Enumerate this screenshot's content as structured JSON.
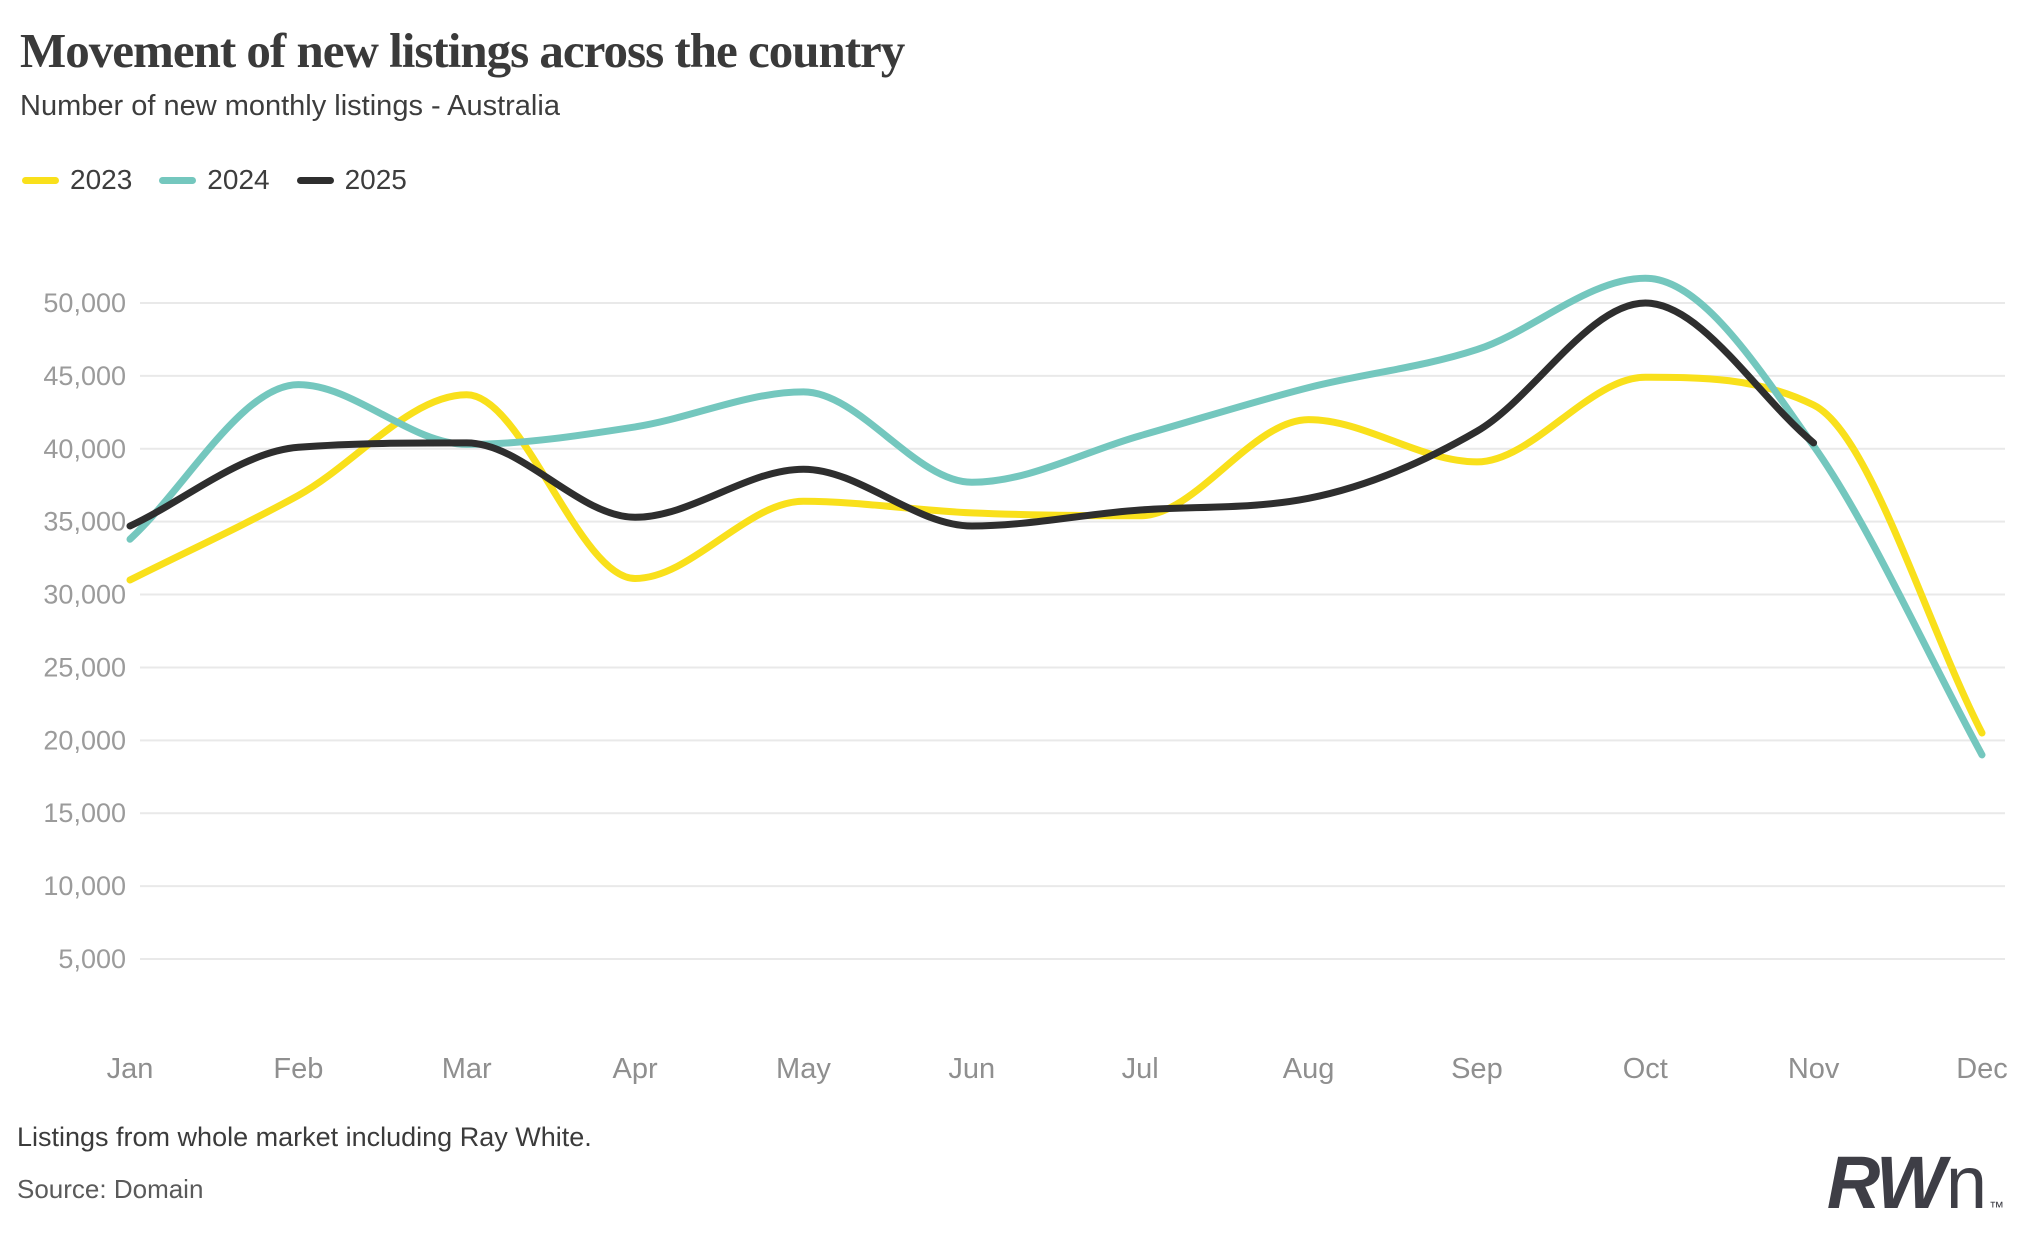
{
  "header": {
    "title": "Movement of new listings across the country",
    "subtitle": "Number of new monthly listings - Australia"
  },
  "chart_data": {
    "type": "line",
    "title": "Movement of new listings across the country",
    "subtitle": "Number of new monthly listings - Australia",
    "categories": [
      "Jan",
      "Feb",
      "Mar",
      "Apr",
      "May",
      "Jun",
      "Jul",
      "Aug",
      "Sep",
      "Oct",
      "Nov",
      "Dec"
    ],
    "series": [
      {
        "name": "2023",
        "color": "#F9E01B",
        "values": [
          31000,
          36800,
          43700,
          31100,
          36400,
          35600,
          35400,
          42000,
          39100,
          44900,
          43000,
          20500
        ]
      },
      {
        "name": "2024",
        "color": "#74C7BE",
        "values": [
          33800,
          44400,
          40300,
          41500,
          43900,
          37700,
          40900,
          44200,
          46800,
          51700,
          40200,
          19000
        ]
      },
      {
        "name": "2025",
        "color": "#2E2E2E",
        "values": [
          34700,
          40100,
          40400,
          35300,
          38600,
          34700,
          35800,
          36600,
          41200,
          50000,
          40400
        ]
      }
    ],
    "y_ticks": [
      50000,
      45000,
      40000,
      35000,
      30000,
      25000,
      20000,
      15000,
      10000,
      5000
    ],
    "ylim": [
      5000,
      50000
    ],
    "xlabel": "",
    "ylabel": "",
    "grid": "horizontal",
    "grid_color": "#E9E9E9",
    "axis_label_color": "#9B9B9B",
    "month_label_color": "#8F8F8F",
    "legend_position": "top-left"
  },
  "footer": {
    "note": "Listings from whole market including Ray White.",
    "source": "Source: Domain"
  },
  "logo": {
    "bold": "RW",
    "light": "n",
    "tm": "™"
  }
}
